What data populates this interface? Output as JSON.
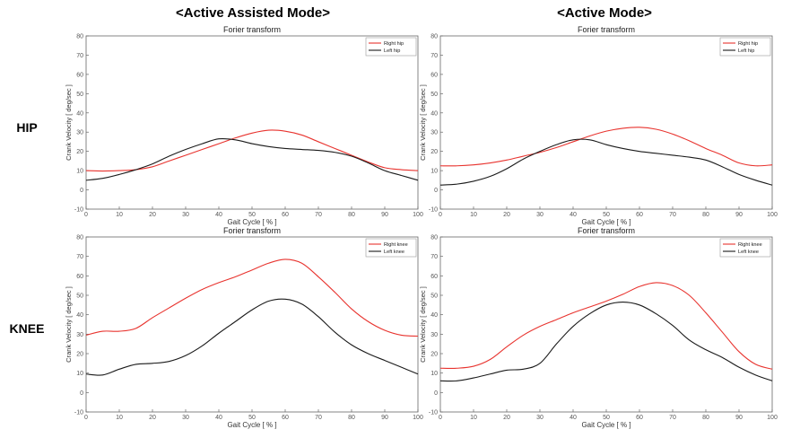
{
  "column_titles": [
    "<Active Assisted Mode>",
    "<Active Mode>"
  ],
  "row_labels": [
    "HIP",
    "KNEE"
  ],
  "colors": {
    "right": "#e8332e",
    "left": "#1a1a1a",
    "axis": "#666666",
    "tick": "#555555"
  },
  "chart_data": [
    {
      "type": "line",
      "title": "Forier transform",
      "xlabel": "Gait Cycle [ % ]",
      "ylabel": "Crank Velocity [ deg/sec ]",
      "xlim": [
        0,
        100
      ],
      "ylim": [
        -10,
        80
      ],
      "xticks": [
        0,
        10,
        20,
        30,
        40,
        50,
        60,
        70,
        80,
        90,
        100
      ],
      "yticks": [
        -10,
        0,
        10,
        20,
        30,
        40,
        50,
        60,
        70,
        80
      ],
      "legend": "top-right",
      "x": [
        0,
        5,
        10,
        15,
        20,
        25,
        30,
        35,
        40,
        45,
        50,
        55,
        60,
        65,
        70,
        75,
        80,
        85,
        90,
        95,
        100
      ],
      "series": [
        {
          "name": "Right hip",
          "color": "#e8332e",
          "values": [
            10,
            9.8,
            10,
            10.5,
            12,
            15,
            18,
            21,
            24,
            27,
            29.5,
            31,
            30.5,
            28.5,
            25,
            21.5,
            18,
            14.5,
            11.5,
            10.5,
            10
          ]
        },
        {
          "name": "Left hip",
          "color": "#1a1a1a",
          "values": [
            5,
            6,
            8,
            10.5,
            13.5,
            17.5,
            21,
            24,
            26.5,
            26,
            24,
            22.5,
            21.5,
            21,
            20.5,
            19.5,
            17.5,
            14,
            10,
            7.5,
            5
          ]
        }
      ]
    },
    {
      "type": "line",
      "title": "Forier transform",
      "xlabel": "Gait Cycle [ % ]",
      "ylabel": "Crank Velocity [ deg/sec ]",
      "xlim": [
        0,
        100
      ],
      "ylim": [
        -10,
        80
      ],
      "xticks": [
        0,
        10,
        20,
        30,
        40,
        50,
        60,
        70,
        80,
        90,
        100
      ],
      "yticks": [
        -10,
        0,
        10,
        20,
        30,
        40,
        50,
        60,
        70,
        80
      ],
      "legend": "top-right",
      "x": [
        0,
        5,
        10,
        15,
        20,
        25,
        30,
        35,
        40,
        45,
        50,
        55,
        60,
        65,
        70,
        75,
        80,
        85,
        90,
        95,
        100
      ],
      "series": [
        {
          "name": "Right hip",
          "color": "#e8332e",
          "values": [
            12.5,
            12.5,
            13,
            14,
            15.5,
            17.5,
            19.5,
            22,
            25,
            28,
            30.5,
            32,
            32.5,
            31.5,
            29,
            25.5,
            21.5,
            18,
            14,
            12.5,
            13
          ]
        },
        {
          "name": "Left hip",
          "color": "#1a1a1a",
          "values": [
            2.5,
            3,
            4.5,
            7,
            11,
            16,
            20,
            23.5,
            26,
            26,
            23.5,
            21.5,
            20,
            19,
            18,
            17,
            15.5,
            12,
            8,
            5,
            2.5
          ]
        }
      ]
    },
    {
      "type": "line",
      "title": "Forier transform",
      "xlabel": "Gait Cycle [ % ]",
      "ylabel": "Crank Velocity [ deg/sec ]",
      "xlim": [
        0,
        100
      ],
      "ylim": [
        -10,
        80
      ],
      "xticks": [
        0,
        10,
        20,
        30,
        40,
        50,
        60,
        70,
        80,
        90,
        100
      ],
      "yticks": [
        -10,
        0,
        10,
        20,
        30,
        40,
        50,
        60,
        70,
        80
      ],
      "legend": "top-right",
      "x": [
        0,
        5,
        10,
        15,
        20,
        25,
        30,
        35,
        40,
        45,
        50,
        55,
        60,
        65,
        70,
        75,
        80,
        85,
        90,
        95,
        100
      ],
      "series": [
        {
          "name": "Right knee",
          "color": "#e8332e",
          "values": [
            29.5,
            31.5,
            31.5,
            33,
            38.5,
            43.5,
            48.5,
            53,
            56.5,
            59.5,
            63,
            66.5,
            68.5,
            66.5,
            59.5,
            51.5,
            43,
            36.5,
            32,
            29.5,
            29
          ]
        },
        {
          "name": "Left knee",
          "color": "#1a1a1a",
          "values": [
            9.5,
            9,
            12,
            14.5,
            15,
            16,
            19,
            24,
            30.5,
            36.5,
            42.5,
            47,
            48,
            45.5,
            39,
            31,
            24.5,
            20,
            16.5,
            13,
            9.5
          ]
        }
      ]
    },
    {
      "type": "line",
      "title": "Forier transform",
      "xlabel": "Gait Cycle [ % ]",
      "ylabel": "Crank Velocity [ deg/sec ]",
      "xlim": [
        0,
        100
      ],
      "ylim": [
        -10,
        80
      ],
      "xticks": [
        0,
        10,
        20,
        30,
        40,
        50,
        60,
        70,
        80,
        90,
        100
      ],
      "yticks": [
        -10,
        0,
        10,
        20,
        30,
        40,
        50,
        60,
        70,
        80
      ],
      "legend": "top-right",
      "x": [
        0,
        5,
        10,
        15,
        20,
        25,
        30,
        35,
        40,
        45,
        50,
        55,
        60,
        65,
        70,
        75,
        80,
        85,
        90,
        95,
        100
      ],
      "series": [
        {
          "name": "Right knee",
          "color": "#e8332e",
          "values": [
            12.5,
            12.5,
            13.5,
            17,
            23.5,
            29.5,
            34,
            37.5,
            41,
            44,
            47,
            50.5,
            54.5,
            56.5,
            55,
            50,
            41,
            31,
            21,
            14.5,
            12
          ]
        },
        {
          "name": "Left knee",
          "color": "#1a1a1a",
          "values": [
            6,
            6,
            7.5,
            9.5,
            11.5,
            12,
            15,
            25,
            34,
            40.5,
            45,
            46.5,
            45,
            40.5,
            34.5,
            27,
            22,
            18,
            13,
            9,
            6
          ]
        }
      ]
    }
  ]
}
